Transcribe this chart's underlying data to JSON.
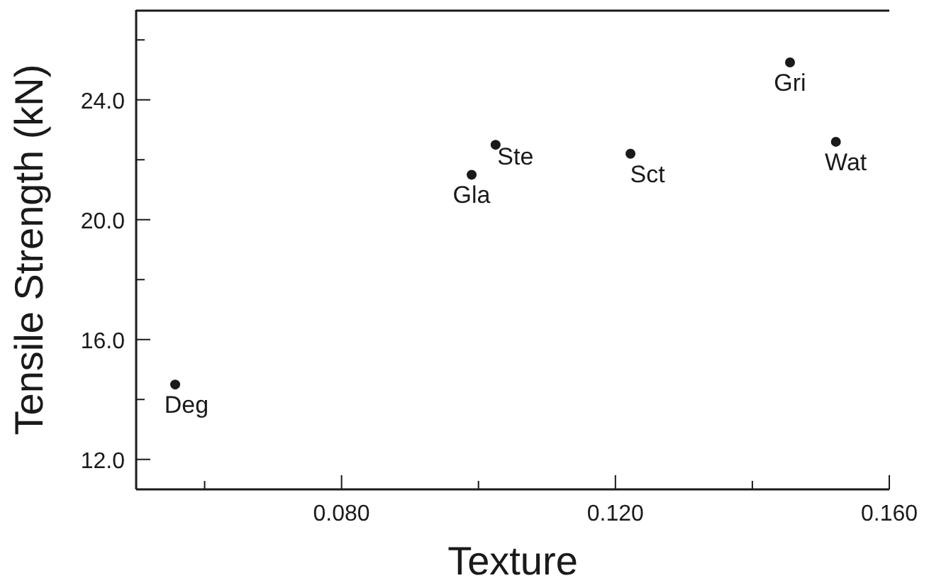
{
  "chart_data": {
    "type": "scatter",
    "xlabel": "Texture",
    "ylabel": "Tensile Strength (kN)",
    "x": [
      0.0557,
      0.099,
      0.1025,
      0.1222,
      0.1455,
      0.1522
    ],
    "values": [
      14.5,
      21.5,
      22.5,
      22.2,
      25.25,
      22.6
    ],
    "color": "#1a1a1a",
    "marker": "circle",
    "xlim": [
      0.05,
      0.16
    ],
    "xticks": [
      {
        "value": 0.06,
        "label": null
      },
      {
        "value": 0.08,
        "label": "0.080"
      },
      {
        "value": 0.1,
        "label": null
      },
      {
        "value": 0.12,
        "label": "0.120"
      },
      {
        "value": 0.14,
        "label": null
      },
      {
        "value": 0.16,
        "label": "0.160"
      }
    ],
    "ylim": [
      11,
      27
    ],
    "yticks": [
      {
        "value": 12,
        "label": "12.0"
      },
      {
        "value": 14,
        "label": null
      },
      {
        "value": 16,
        "label": "16.0"
      },
      {
        "value": 18,
        "label": null
      },
      {
        "value": 20,
        "label": "20.0"
      },
      {
        "value": 22,
        "label": null
      },
      {
        "value": 24,
        "label": "24.0"
      },
      {
        "value": 26,
        "label": null
      }
    ],
    "annotations": [
      {
        "text": "Deg",
        "x": 0.0557,
        "y": 14.5
      },
      {
        "text": "Gla",
        "x": 0.099,
        "y": 21.5
      },
      {
        "text": "Ste",
        "x": 0.1025,
        "y": 22.5
      },
      {
        "text": "Sct",
        "x": 0.1222,
        "y": 22.2
      },
      {
        "text": "Gri",
        "x": 0.1455,
        "y": 25.25
      },
      {
        "text": "Wat",
        "x": 0.1522,
        "y": 22.6
      }
    ],
    "grid": false,
    "legend": false
  }
}
